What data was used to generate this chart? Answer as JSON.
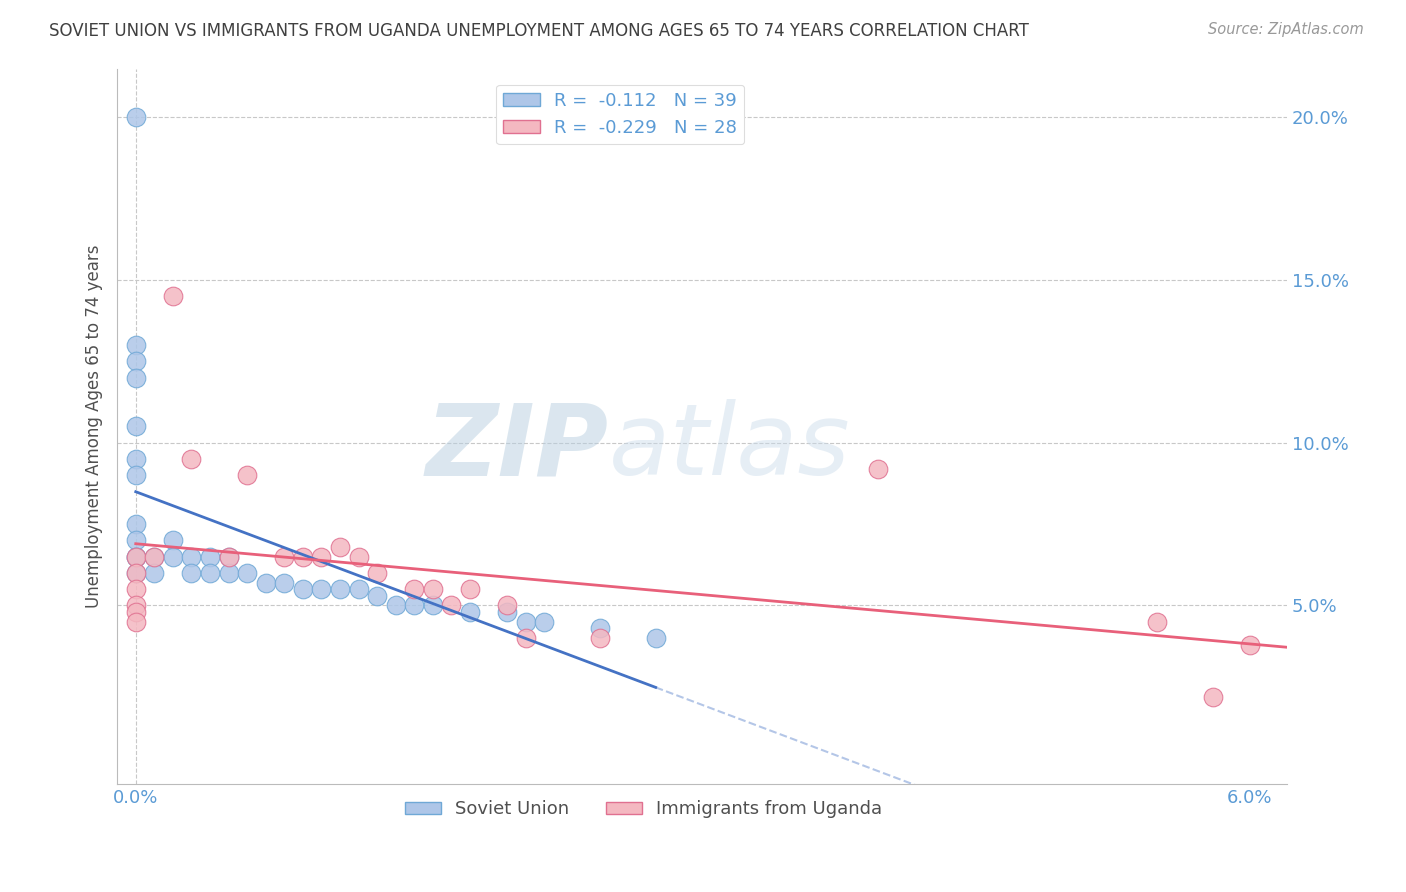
{
  "title": "SOVIET UNION VS IMMIGRANTS FROM UGANDA UNEMPLOYMENT AMONG AGES 65 TO 74 YEARS CORRELATION CHART",
  "source": "Source: ZipAtlas.com",
  "ylabel": "Unemployment Among Ages 65 to 74 years",
  "xlim": [
    -0.001,
    0.062
  ],
  "ylim": [
    -0.005,
    0.215
  ],
  "soviet_color": "#aec6e8",
  "soviet_edge_color": "#6fa8d6",
  "uganda_color": "#f4b8c1",
  "uganda_edge_color": "#e07090",
  "soviet_line_color": "#4472c4",
  "uganda_line_color": "#e8607a",
  "watermark_zip": "ZIP",
  "watermark_atlas": "atlas",
  "background_color": "#ffffff",
  "grid_color": "#c8c8c8",
  "title_color": "#404040",
  "label_color": "#505050",
  "tick_label_color": "#5b9bd5",
  "legend_text_color": "#5b9bd5",
  "soviet_scatter_x": [
    0.0,
    0.0,
    0.0,
    0.0,
    0.0,
    0.0,
    0.0,
    0.0,
    0.0,
    0.0,
    0.0,
    0.0,
    0.001,
    0.001,
    0.002,
    0.002,
    0.003,
    0.003,
    0.004,
    0.004,
    0.005,
    0.005,
    0.006,
    0.007,
    0.008,
    0.009,
    0.01,
    0.011,
    0.012,
    0.013,
    0.014,
    0.015,
    0.016,
    0.018,
    0.02,
    0.021,
    0.022,
    0.025,
    0.028
  ],
  "soviet_scatter_y": [
    0.2,
    0.13,
    0.125,
    0.12,
    0.105,
    0.095,
    0.09,
    0.075,
    0.07,
    0.065,
    0.065,
    0.06,
    0.065,
    0.06,
    0.07,
    0.065,
    0.065,
    0.06,
    0.065,
    0.06,
    0.065,
    0.06,
    0.06,
    0.057,
    0.057,
    0.055,
    0.055,
    0.055,
    0.055,
    0.053,
    0.05,
    0.05,
    0.05,
    0.048,
    0.048,
    0.045,
    0.045,
    0.043,
    0.04
  ],
  "uganda_scatter_x": [
    0.0,
    0.0,
    0.0,
    0.0,
    0.0,
    0.0,
    0.001,
    0.002,
    0.003,
    0.005,
    0.006,
    0.008,
    0.009,
    0.01,
    0.011,
    0.012,
    0.013,
    0.015,
    0.016,
    0.017,
    0.018,
    0.02,
    0.021,
    0.025,
    0.04,
    0.055,
    0.058,
    0.06
  ],
  "uganda_scatter_y": [
    0.065,
    0.06,
    0.055,
    0.05,
    0.048,
    0.045,
    0.065,
    0.145,
    0.095,
    0.065,
    0.09,
    0.065,
    0.065,
    0.065,
    0.068,
    0.065,
    0.06,
    0.055,
    0.055,
    0.05,
    0.055,
    0.05,
    0.04,
    0.04,
    0.092,
    0.045,
    0.022,
    0.038
  ],
  "legend_items": [
    {
      "label": "R =  -0.112   N = 39",
      "facecolor": "#aec6e8",
      "edgecolor": "#6fa8d6"
    },
    {
      "label": "R =  -0.229   N = 28",
      "facecolor": "#f4b8c1",
      "edgecolor": "#e07090"
    }
  ]
}
